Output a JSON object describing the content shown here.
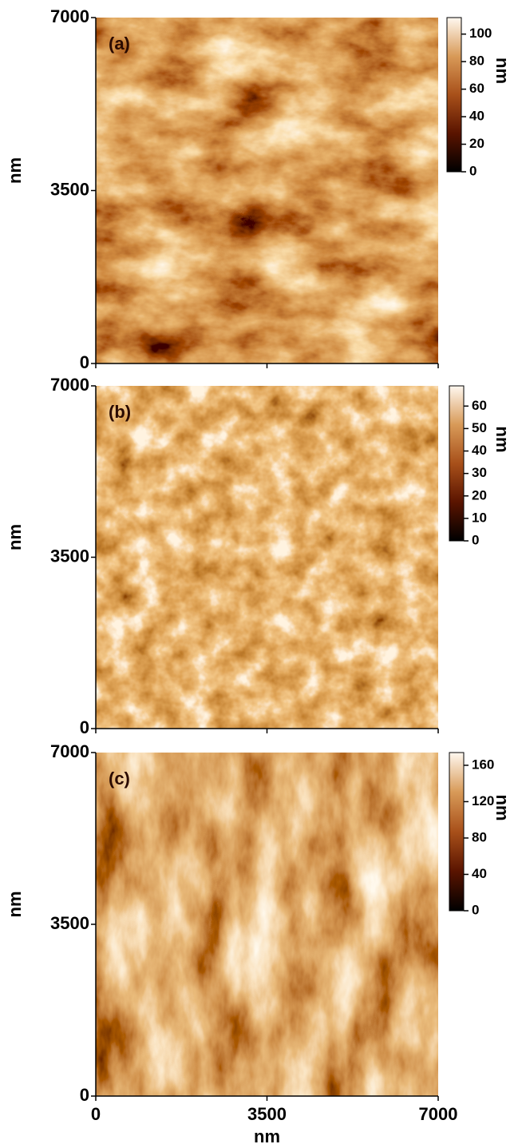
{
  "chart_data": [
    {
      "type": "heatmap",
      "panel_label": "(a)",
      "ylabel": "nm",
      "xlim": [
        0,
        7000
      ],
      "ylim": [
        0,
        7000
      ],
      "xticks": [
        0,
        3500,
        7000
      ],
      "yticks": [
        0,
        3500,
        7000
      ],
      "colorbar": {
        "label": "nm",
        "lim": [
          0,
          112
        ],
        "ticks": [
          0,
          20,
          40,
          60,
          80,
          100
        ]
      }
    },
    {
      "type": "heatmap",
      "panel_label": "(b)",
      "ylabel": "nm",
      "xlim": [
        0,
        7000
      ],
      "ylim": [
        0,
        7000
      ],
      "xticks": [
        0,
        3500,
        7000
      ],
      "yticks": [
        0,
        3500,
        7000
      ],
      "colorbar": {
        "label": "nm",
        "lim": [
          0,
          69
        ],
        "ticks": [
          0,
          10,
          20,
          30,
          40,
          50,
          60
        ]
      }
    },
    {
      "type": "heatmap",
      "panel_label": "(c)",
      "ylabel": "nm",
      "xlabel": "nm",
      "xlim": [
        0,
        7000
      ],
      "ylim": [
        0,
        7000
      ],
      "xticks": [
        0,
        3500,
        7000
      ],
      "yticks": [
        0,
        3500,
        7000
      ],
      "colorbar": {
        "label": "nm",
        "lim": [
          0,
          174
        ],
        "ticks": [
          0,
          40,
          80,
          120,
          160
        ]
      }
    }
  ]
}
